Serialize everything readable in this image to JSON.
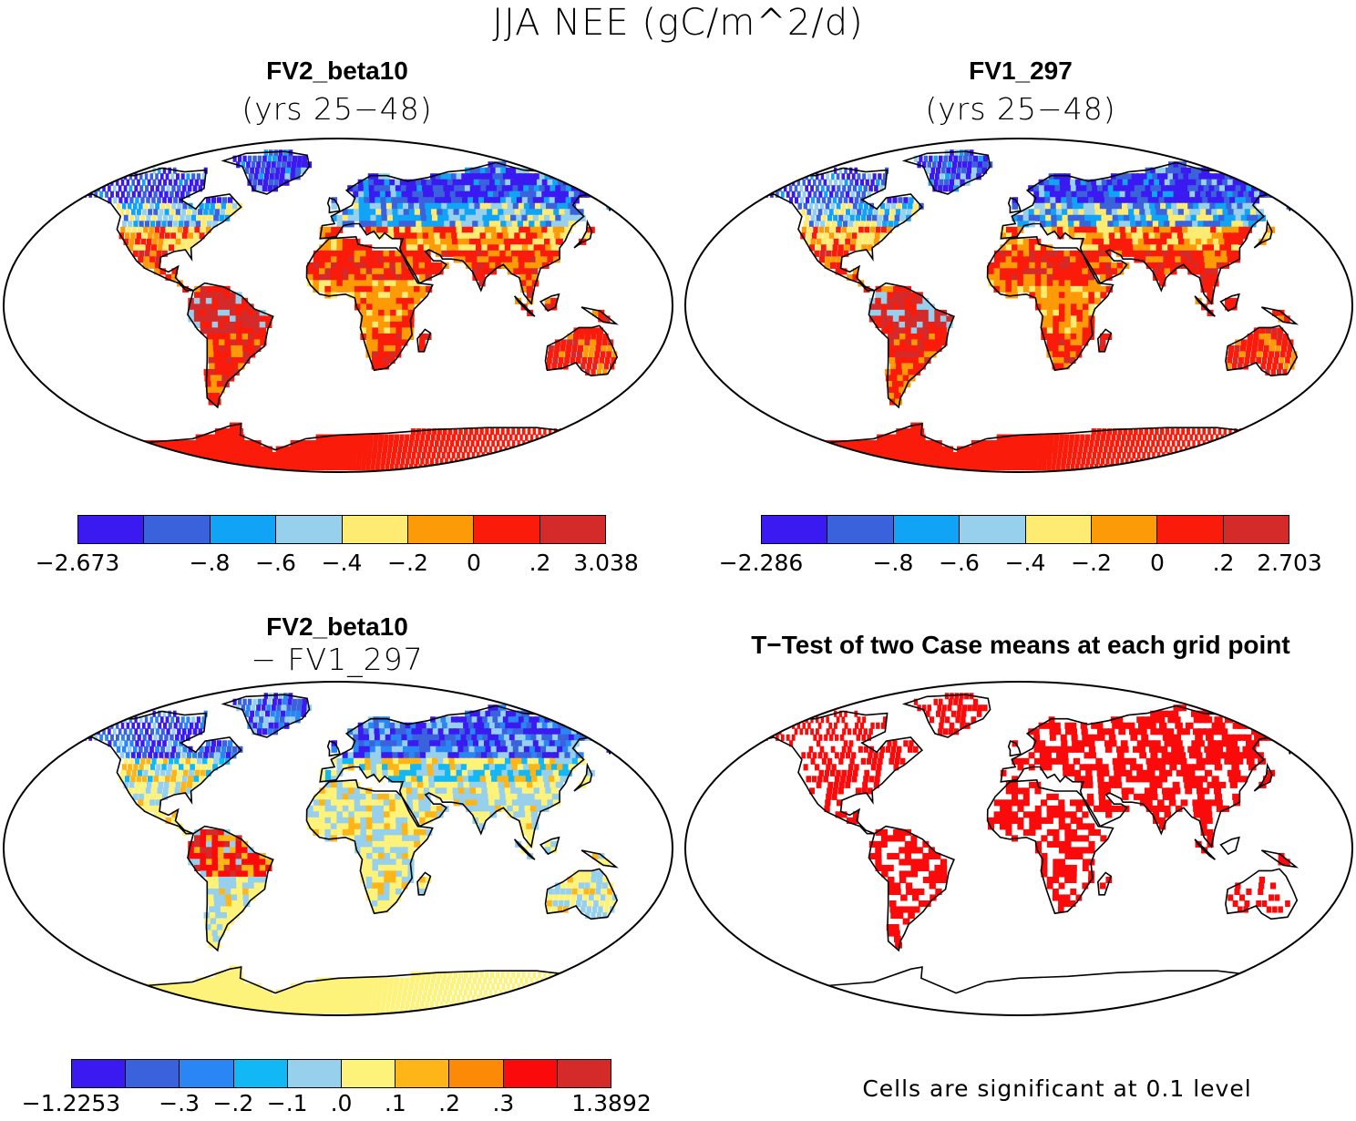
{
  "figure_title": "JJA NEE (gC/m^2/d)",
  "panels": [
    {
      "id": "fv2",
      "title": "FV2_beta10",
      "subtitle": "(yrs 25-48)",
      "colorbar": {
        "colors": [
          "#3a1af0",
          "#3a62dc",
          "#11a3f5",
          "#96d0ec",
          "#fdeb72",
          "#fd9a07",
          "#fa1b0b",
          "#d52a2a"
        ],
        "labels": [
          "-2.673",
          "-.8",
          "-.6",
          "-.4",
          "-.2",
          "0",
          ".2",
          "3.038"
        ]
      }
    },
    {
      "id": "fv1",
      "title": "FV1_297",
      "subtitle": "(yrs 25-48)",
      "colorbar": {
        "colors": [
          "#3a1af0",
          "#3a62dc",
          "#11a3f5",
          "#96d0ec",
          "#fdeb72",
          "#fd9a07",
          "#fa1b0b",
          "#d52a2a"
        ],
        "labels": [
          "-2.286",
          "-.8",
          "-.6",
          "-.4",
          "-.2",
          "0",
          ".2",
          "2.703"
        ]
      }
    },
    {
      "id": "diff",
      "title": "FV2_beta10",
      "subtitle": "- FV1_297",
      "colorbar": {
        "colors": [
          "#3a1af0",
          "#3a62dc",
          "#2a85f5",
          "#11b8f5",
          "#96d0ec",
          "#fdf27a",
          "#fdb517",
          "#fd8a07",
          "#fa0a0a",
          "#d52a2a"
        ],
        "labels": [
          "-1.2253",
          "-.3",
          "-.2",
          "-.1",
          ".0",
          ".1",
          ".2",
          ".3",
          "1.3892"
        ]
      }
    },
    {
      "id": "ttest",
      "title": "T-Test of two Case means at each grid point",
      "footnote": "Cells are significant at 0.1 level",
      "fill": "#fa0a0a"
    }
  ]
}
